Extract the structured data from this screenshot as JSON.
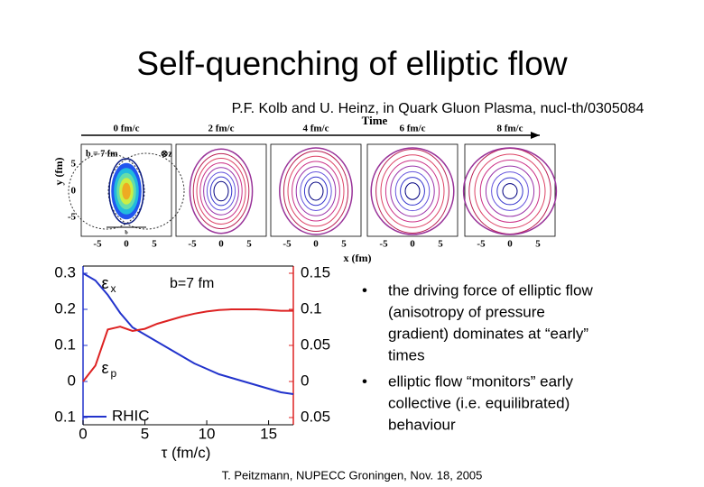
{
  "title": "Self-quenching of elliptic flow",
  "subtitle": "P.F. Kolb and U. Heinz, in Quark Gluon Plasma, nucl-th/0305084",
  "contour_figure": {
    "time_axis_label": "Time",
    "time_labels": [
      "0 fm/c",
      "2 fm/c",
      "4 fm/c",
      "6 fm/c",
      "8 fm/c"
    ],
    "y_label": "y (fm)",
    "y_ticks": [
      "5",
      "0",
      "-5"
    ],
    "x_label": "x (fm)",
    "x_ticks": [
      "-5",
      "0",
      "5"
    ],
    "impact_label": "b = 7 fm",
    "beam_label": "⊗z",
    "b_marker": "b"
  },
  "chart_data": {
    "type": "line",
    "x_label": "τ (fm/c)",
    "x": [
      0,
      1,
      2,
      3,
      4,
      5,
      6,
      7,
      8,
      9,
      10,
      11,
      12,
      13,
      14,
      15,
      16,
      17
    ],
    "xlim": [
      0,
      17
    ],
    "xticks": [
      0,
      5,
      10,
      15
    ],
    "ylim": [
      -0.12,
      0.32
    ],
    "yticks": [
      {
        "value": -0.1,
        "label": "0.1"
      },
      0,
      0.1,
      0.2,
      0.3
    ],
    "y2lim": [
      -0.06,
      0.16
    ],
    "y2ticks": [
      {
        "value": -0.05,
        "label": "0.05"
      },
      0,
      0.05,
      0.1,
      0.15
    ],
    "series": [
      {
        "name": "RHIC",
        "color": "#2233cc",
        "values": [
          0.3,
          0.28,
          0.24,
          0.19,
          0.15,
          0.13,
          0.11,
          0.09,
          0.07,
          0.05,
          0.035,
          0.02,
          0.01,
          0,
          -0.01,
          -0.02,
          -0.03,
          -0.035
        ]
      },
      {
        "color": "#dd2222",
        "axis": "y2",
        "values": [
          0,
          0.022,
          0.072,
          0.076,
          0.07,
          0.073,
          0.08,
          0.085,
          0.09,
          0.094,
          0.097,
          0.099,
          0.1,
          0.1,
          0.1,
          0.099,
          0.098,
          0.098
        ]
      }
    ],
    "annotations": [
      {
        "symbol": "ε",
        "sub": "x",
        "x": 1.5,
        "y": 0.27
      },
      {
        "symbol": "ε",
        "sub": "p",
        "x": 1.5,
        "y": 0.035
      },
      {
        "text": "b=7 fm",
        "x": 7,
        "y": 0.27
      }
    ]
  },
  "bullets": [
    [
      "the driving force of elliptic flow",
      "(anisotropy of pressure",
      "gradient) dominates at “early”",
      "times"
    ],
    [
      "elliptic flow “monitors” early",
      "collective (i.e. equilibrated)",
      "behaviour"
    ]
  ],
  "footer": "T. Peitzmann, NUPECC Groningen, Nov. 18, 2005"
}
